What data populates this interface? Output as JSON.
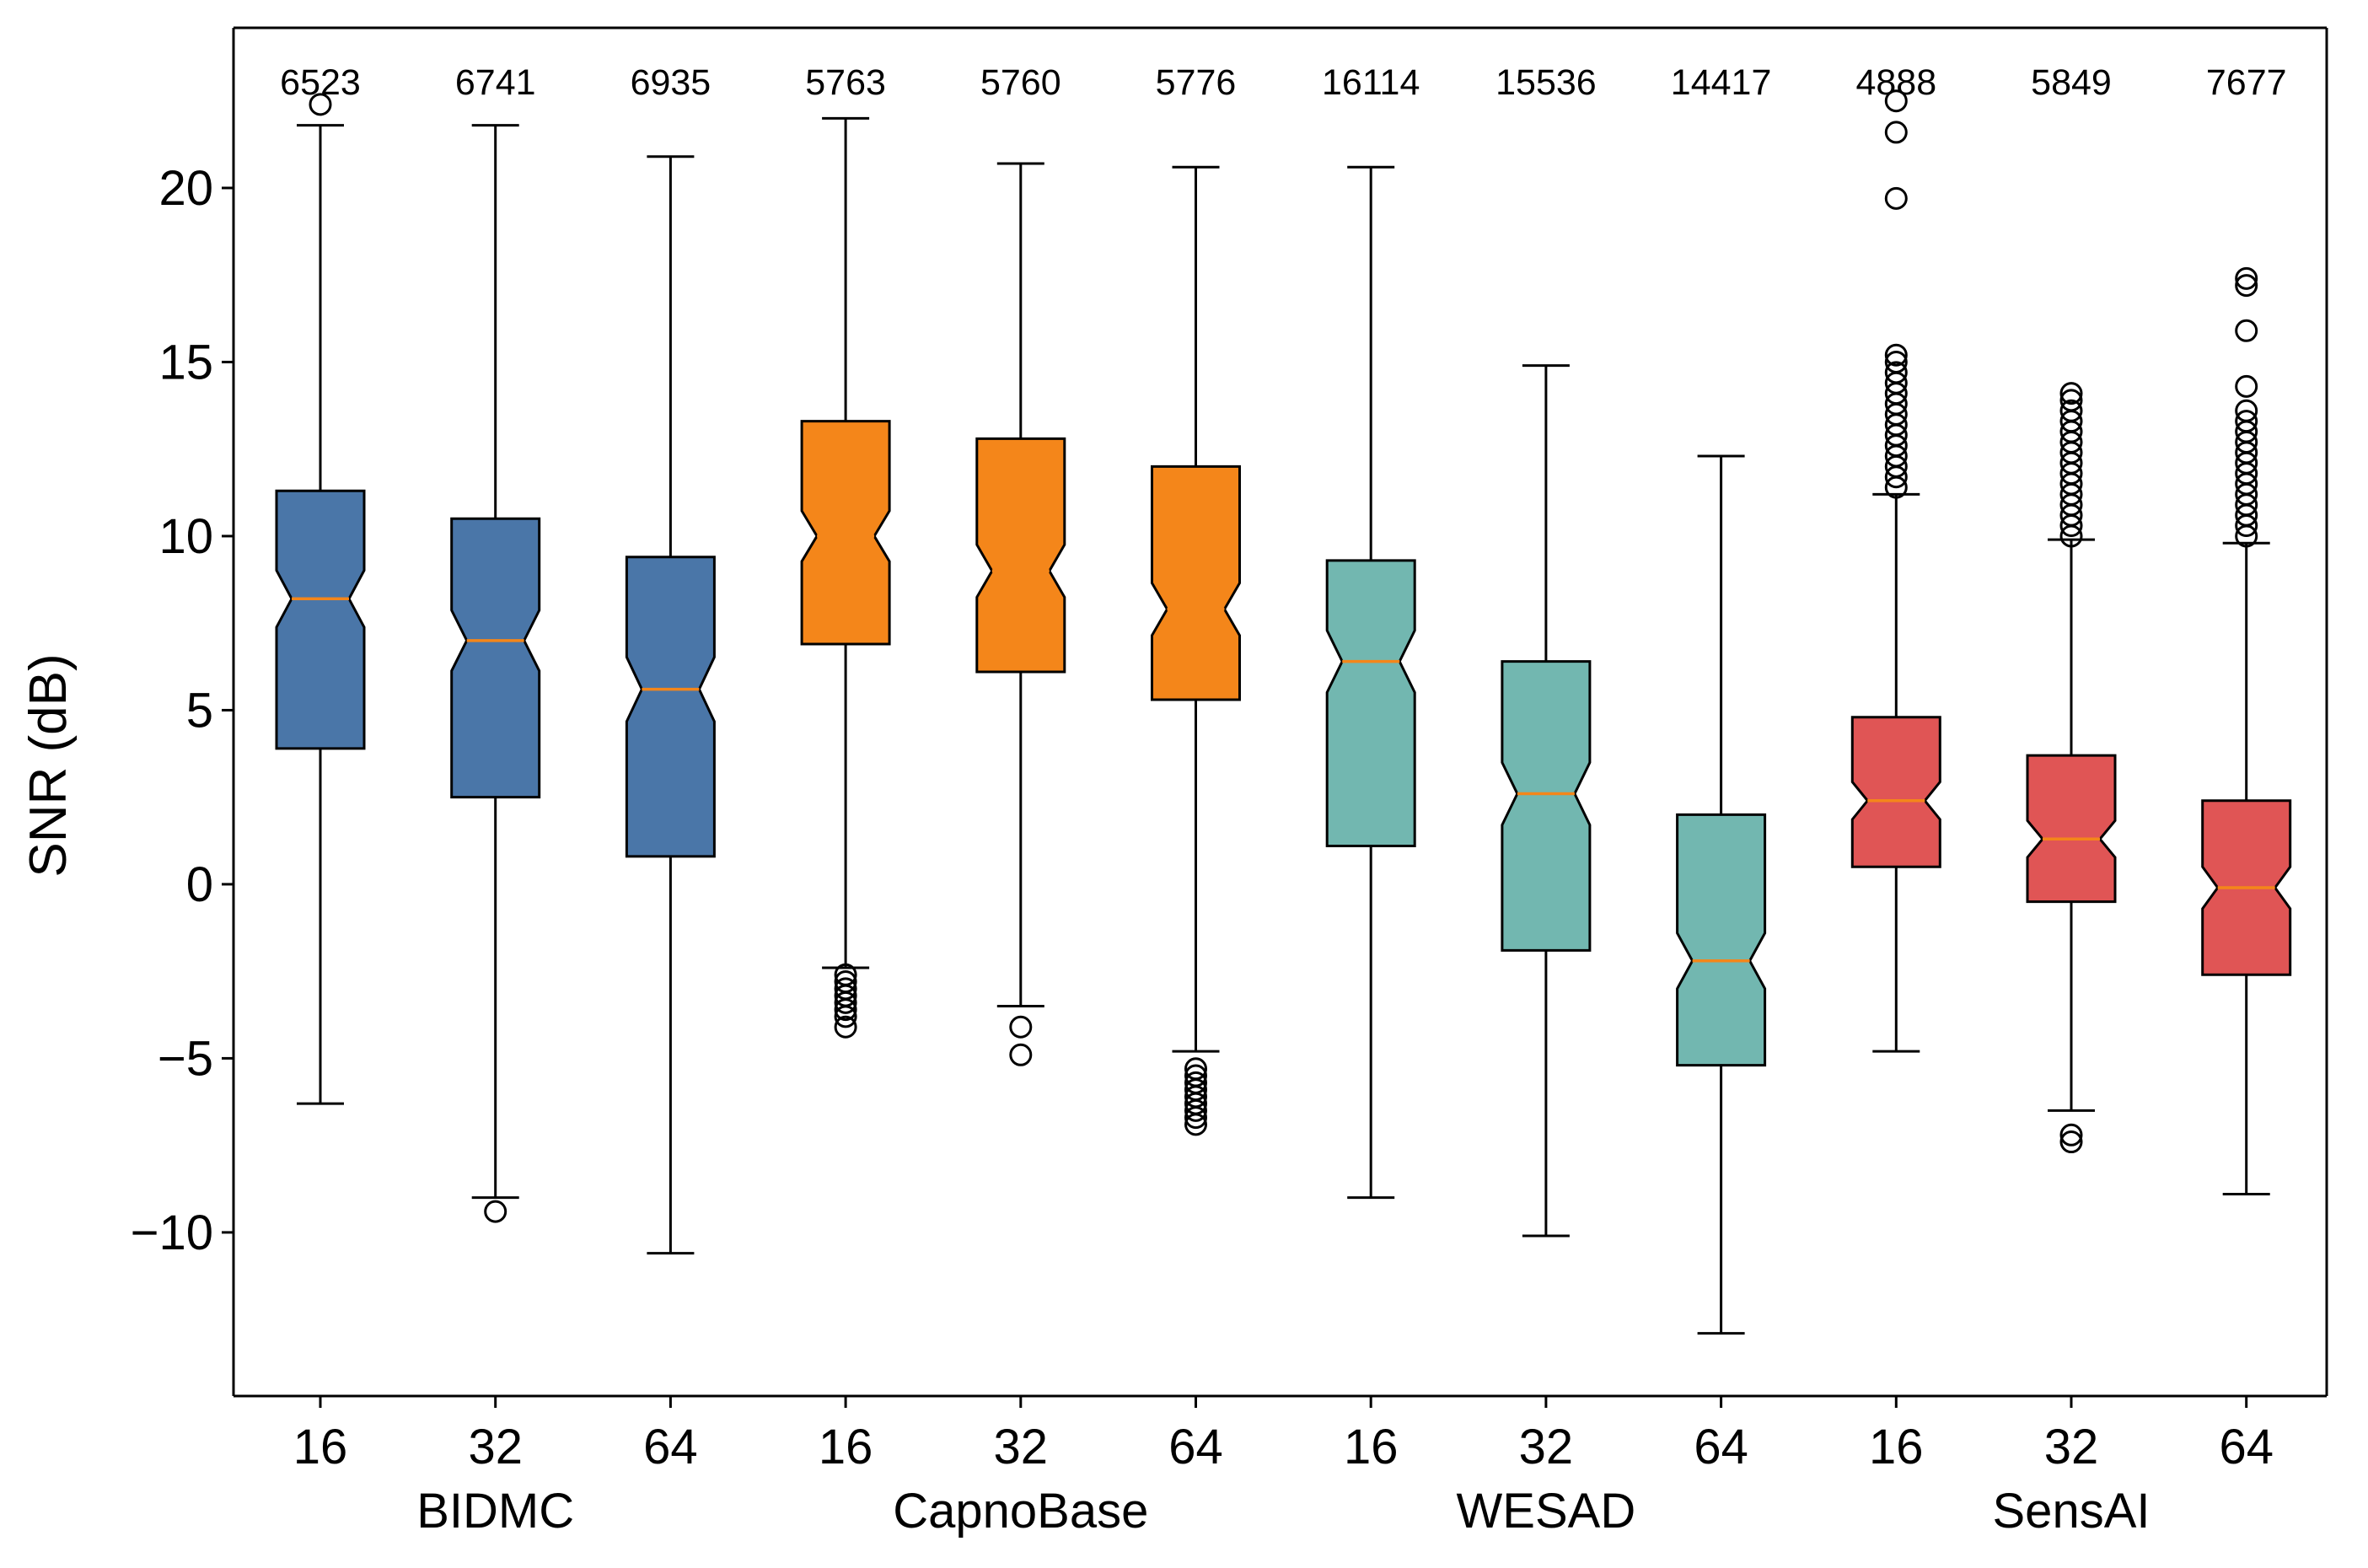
{
  "chart_data": {
    "type": "boxplot",
    "title": "",
    "xlabel": "",
    "ylabel": "SNR (dB)",
    "ylim": [
      -14.7,
      24.6
    ],
    "yticks": [
      {
        "value": -10,
        "label": "−10"
      },
      {
        "value": -5,
        "label": "−5"
      },
      {
        "value": 0,
        "label": "0"
      },
      {
        "value": 5,
        "label": "5"
      },
      {
        "value": 10,
        "label": "10"
      },
      {
        "value": 15,
        "label": "15"
      },
      {
        "value": 20,
        "label": "20"
      }
    ],
    "notched": true,
    "groups": [
      {
        "name": "BIDMC",
        "color": "#4a76a8"
      },
      {
        "name": "CapnoBase",
        "color": "#f4861a"
      },
      {
        "name": "WESAD",
        "color": "#72b7b0"
      },
      {
        "name": "SensAI",
        "color": "#e05555"
      }
    ],
    "median_color": "#f4861a",
    "boxes": [
      {
        "group": 0,
        "label": "16",
        "count": "6523",
        "q1": 3.9,
        "median": 8.2,
        "q3": 11.3,
        "whisker_low": -6.3,
        "whisker_high": 21.8,
        "outliers": [
          22.4
        ]
      },
      {
        "group": 0,
        "label": "32",
        "count": "6741",
        "q1": 2.5,
        "median": 7.0,
        "q3": 10.5,
        "whisker_low": -9.0,
        "whisker_high": 21.8,
        "outliers": [
          -9.4
        ]
      },
      {
        "group": 0,
        "label": "64",
        "count": "6935",
        "q1": 0.8,
        "median": 5.6,
        "q3": 9.4,
        "whisker_low": -10.6,
        "whisker_high": 20.9,
        "outliers": []
      },
      {
        "group": 1,
        "label": "16",
        "count": "5763",
        "q1": 6.9,
        "median": 10.0,
        "q3": 13.3,
        "whisker_low": -2.4,
        "whisker_high": 22.0,
        "outliers": [
          -2.6,
          -2.8,
          -3.0,
          -3.2,
          -3.4,
          -3.6,
          -3.8,
          -4.1
        ]
      },
      {
        "group": 1,
        "label": "32",
        "count": "5760",
        "q1": 6.1,
        "median": 9.0,
        "q3": 12.8,
        "whisker_low": -3.5,
        "whisker_high": 20.7,
        "outliers": [
          -4.1,
          -4.9
        ]
      },
      {
        "group": 1,
        "label": "64",
        "count": "5776",
        "q1": 5.3,
        "median": 7.9,
        "q3": 12.0,
        "whisker_low": -4.8,
        "whisker_high": 20.6,
        "outliers": [
          -5.3,
          -5.5,
          -5.7,
          -5.9,
          -6.1,
          -6.3,
          -6.5,
          -6.7,
          -6.9
        ]
      },
      {
        "group": 2,
        "label": "16",
        "count": "16114",
        "q1": 1.1,
        "median": 6.4,
        "q3": 9.3,
        "whisker_low": -9.0,
        "whisker_high": 20.6,
        "outliers": []
      },
      {
        "group": 2,
        "label": "32",
        "count": "15536",
        "q1": -1.9,
        "median": 2.6,
        "q3": 6.4,
        "whisker_low": -10.1,
        "whisker_high": 14.9,
        "outliers": []
      },
      {
        "group": 2,
        "label": "64",
        "count": "14417",
        "q1": -5.2,
        "median": -2.2,
        "q3": 2.0,
        "whisker_low": -12.9,
        "whisker_high": 12.3,
        "outliers": []
      },
      {
        "group": 3,
        "label": "16",
        "count": "4888",
        "q1": 0.5,
        "median": 2.4,
        "q3": 4.8,
        "whisker_low": -4.8,
        "whisker_high": 11.2,
        "outliers": [
          11.4,
          11.7,
          12.0,
          12.3,
          12.6,
          12.9,
          13.2,
          13.5,
          13.8,
          14.1,
          14.4,
          14.7,
          15.0,
          15.2,
          19.7,
          21.6,
          22.5
        ]
      },
      {
        "group": 3,
        "label": "32",
        "count": "5849",
        "q1": -0.5,
        "median": 1.3,
        "q3": 3.7,
        "whisker_low": -6.5,
        "whisker_high": 9.9,
        "outliers": [
          10.0,
          10.3,
          10.6,
          10.9,
          11.2,
          11.5,
          11.8,
          12.1,
          12.4,
          12.7,
          13.0,
          13.3,
          13.6,
          13.9,
          14.1,
          -7.2,
          -7.4
        ]
      },
      {
        "group": 3,
        "label": "64",
        "count": "7677",
        "q1": -2.6,
        "median": -0.1,
        "q3": 2.4,
        "whisker_low": -8.9,
        "whisker_high": 9.8,
        "outliers": [
          10.0,
          10.3,
          10.6,
          10.9,
          11.2,
          11.5,
          11.8,
          12.1,
          12.4,
          12.7,
          13.0,
          13.3,
          13.6,
          14.3,
          15.9,
          17.2,
          17.4
        ]
      }
    ]
  }
}
